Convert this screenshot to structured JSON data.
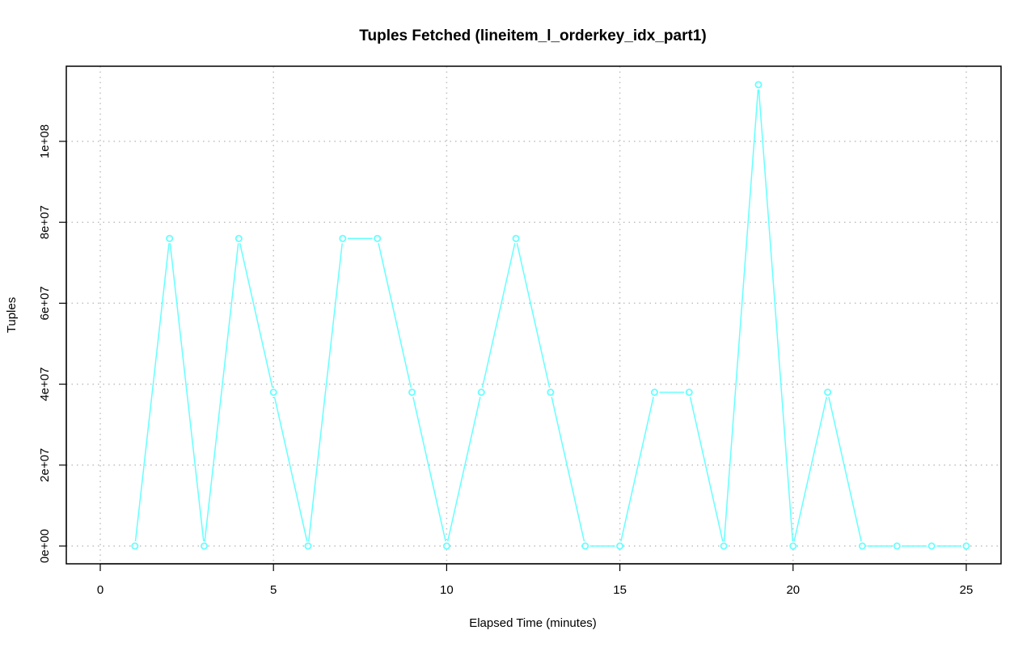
{
  "chart_data": {
    "type": "line",
    "title": "Tuples Fetched (lineitem_l_orderkey_idx_part1)",
    "xlabel": "Elapsed Time (minutes)",
    "ylabel": "Tuples",
    "xlim": [
      0,
      25
    ],
    "ylim": [
      0,
      114000000
    ],
    "x_ticks": [
      0,
      5,
      10,
      15,
      20,
      25
    ],
    "x_tick_labels": [
      "0",
      "5",
      "10",
      "15",
      "20",
      "25"
    ],
    "y_ticks": [
      0,
      20000000,
      40000000,
      60000000,
      80000000,
      100000000
    ],
    "y_tick_labels": [
      "0e+00",
      "2e+07",
      "4e+07",
      "6e+07",
      "8e+07",
      "1e+08"
    ],
    "grid": true,
    "color": "#66ffff",
    "markers": "open-circle",
    "x": [
      1,
      2,
      3,
      4,
      5,
      6,
      7,
      8,
      9,
      10,
      11,
      12,
      13,
      14,
      15,
      16,
      17,
      18,
      19,
      20,
      21,
      22,
      23,
      24,
      25
    ],
    "values": [
      0,
      76000000,
      0,
      76000000,
      38000000,
      0,
      76000000,
      76000000,
      38000000,
      0,
      38000000,
      76000000,
      38000000,
      0,
      0,
      38000000,
      38000000,
      0,
      114000000,
      0,
      38000000,
      0,
      0,
      0,
      0
    ]
  }
}
